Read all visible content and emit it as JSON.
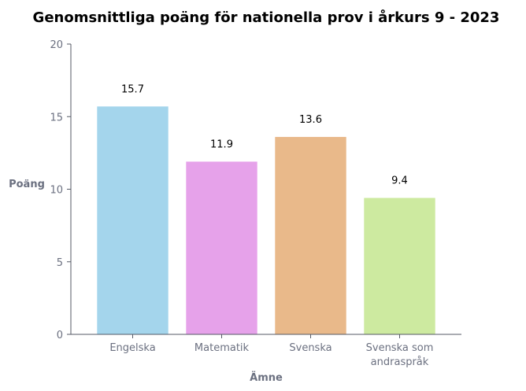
{
  "chart_data": {
    "type": "bar",
    "title": "Genomsnittliga poäng för nationella prov i årkurs 9 - 2023",
    "xlabel": "Ämne",
    "ylabel": "Poäng",
    "categories": [
      "Engelska",
      "Matematik",
      "Svenska",
      "Svenska som\nandraspråk"
    ],
    "values": [
      15.7,
      11.9,
      13.6,
      9.4
    ],
    "data_labels": [
      "15.7",
      "11.9",
      "13.6",
      "9.4"
    ],
    "colors": [
      "#a4d5ec",
      "#e6a2ea",
      "#e9b98a",
      "#cdeaa0"
    ],
    "ylim": [
      0,
      20
    ],
    "yticks": [
      0,
      5,
      10,
      15,
      20
    ],
    "grid": false,
    "legend": "none"
  }
}
